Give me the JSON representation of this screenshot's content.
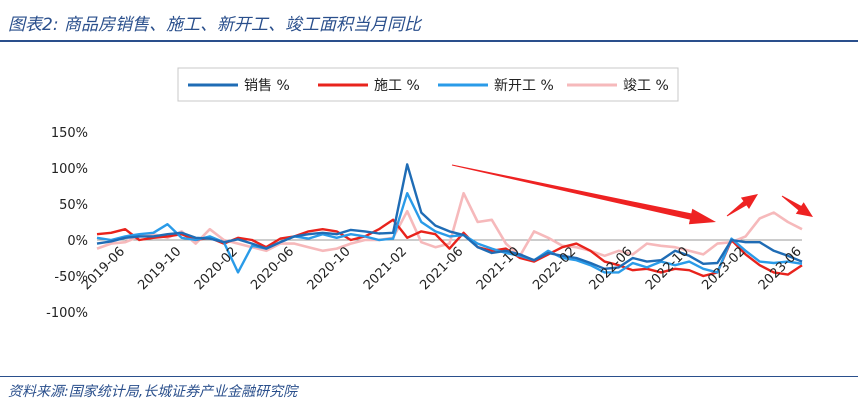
{
  "header": {
    "title": "图表2:  商品房销售、施工、新开工、竣工面积当月同比"
  },
  "footer": {
    "source": "资料来源:国家统计局,长城证券产业金融研究院"
  },
  "colors": {
    "销售": "#1f6cb5",
    "施工": "#e8231c",
    "新开工": "#2a9be8",
    "竣工": "#f6b9bb",
    "arrow": "#ee2222",
    "grid": "#9a9a9a"
  },
  "chart_data": {
    "type": "line",
    "legend_placement": "top",
    "ylim": [
      -100,
      150
    ],
    "yticks": [
      -100,
      -50,
      0,
      50,
      100,
      150
    ],
    "ytick_labels": [
      "-100%",
      "-50%",
      "0%",
      "50%",
      "100%",
      "150%"
    ],
    "x_tick_labels": [
      "2019-06",
      "2019-10",
      "2020-02",
      "2020-06",
      "2020-10",
      "2021-02",
      "2021-06",
      "2021-10",
      "2022-02",
      "2022-06",
      "2022-10",
      "2023-02",
      "2023-06"
    ],
    "x": [
      "2019-04",
      "2019-05",
      "2019-06",
      "2019-07",
      "2019-08",
      "2019-09",
      "2019-10",
      "2019-11",
      "2019-12",
      "2020-01",
      "2020-02",
      "2020-03",
      "2020-04",
      "2020-05",
      "2020-06",
      "2020-07",
      "2020-08",
      "2020-09",
      "2020-10",
      "2020-11",
      "2020-12",
      "2021-01",
      "2021-02",
      "2021-03",
      "2021-04",
      "2021-05",
      "2021-06",
      "2021-07",
      "2021-08",
      "2021-09",
      "2021-10",
      "2021-11",
      "2021-12",
      "2022-01",
      "2022-02",
      "2022-03",
      "2022-04",
      "2022-05",
      "2022-06",
      "2022-07",
      "2022-08",
      "2022-09",
      "2022-10",
      "2022-11",
      "2022-12",
      "2023-01",
      "2023-02",
      "2023-03",
      "2023-04",
      "2023-05",
      "2023-06"
    ],
    "series": [
      {
        "name": "销售 %",
        "values": [
          -5,
          -2,
          3,
          5,
          5,
          8,
          10,
          3,
          2,
          -3,
          1,
          -5,
          -12,
          -3,
          5,
          8,
          10,
          8,
          14,
          12,
          9,
          10,
          105,
          38,
          20,
          12,
          7,
          -10,
          -18,
          -15,
          -20,
          -28,
          -18,
          -22,
          -25,
          -32,
          -40,
          -38,
          -25,
          -30,
          -28,
          -15,
          -22,
          -33,
          -32,
          0,
          -3,
          -3,
          -15,
          -22,
          -30
        ]
      },
      {
        "name": "施工 %",
        "values": [
          8,
          10,
          15,
          0,
          3,
          5,
          8,
          0,
          3,
          -5,
          3,
          0,
          -10,
          2,
          5,
          12,
          15,
          12,
          0,
          5,
          15,
          28,
          3,
          12,
          8,
          -12,
          10,
          -10,
          -15,
          -12,
          -25,
          -30,
          -20,
          -10,
          -5,
          -15,
          -30,
          -35,
          -42,
          -40,
          -45,
          -40,
          -42,
          -50,
          -45,
          0,
          -20,
          -35,
          -45,
          -48,
          -35
        ]
      },
      {
        "name": "新开工 %",
        "values": [
          3,
          0,
          5,
          8,
          10,
          22,
          3,
          0,
          5,
          -3,
          -45,
          -8,
          -12,
          -3,
          5,
          2,
          8,
          3,
          8,
          5,
          0,
          2,
          65,
          25,
          12,
          5,
          7,
          -5,
          -12,
          -18,
          -22,
          -28,
          -15,
          -25,
          -28,
          -35,
          -45,
          -45,
          -32,
          -38,
          -30,
          -35,
          -30,
          -40,
          -45,
          2,
          -15,
          -30,
          -32,
          -30,
          -33
        ]
      },
      {
        "name": "竣工 %",
        "values": [
          -12,
          -5,
          -3,
          5,
          8,
          3,
          12,
          -5,
          15,
          0,
          -5,
          -10,
          -15,
          -5,
          -5,
          -10,
          -15,
          -12,
          -5,
          0,
          0,
          3,
          40,
          -3,
          -10,
          -5,
          65,
          25,
          28,
          -5,
          -22,
          12,
          3,
          -8,
          -10,
          -15,
          -22,
          -15,
          -20,
          -5,
          -8,
          -10,
          -15,
          -20,
          -5,
          -3,
          5,
          30,
          38,
          25,
          15
        ]
      }
    ]
  }
}
